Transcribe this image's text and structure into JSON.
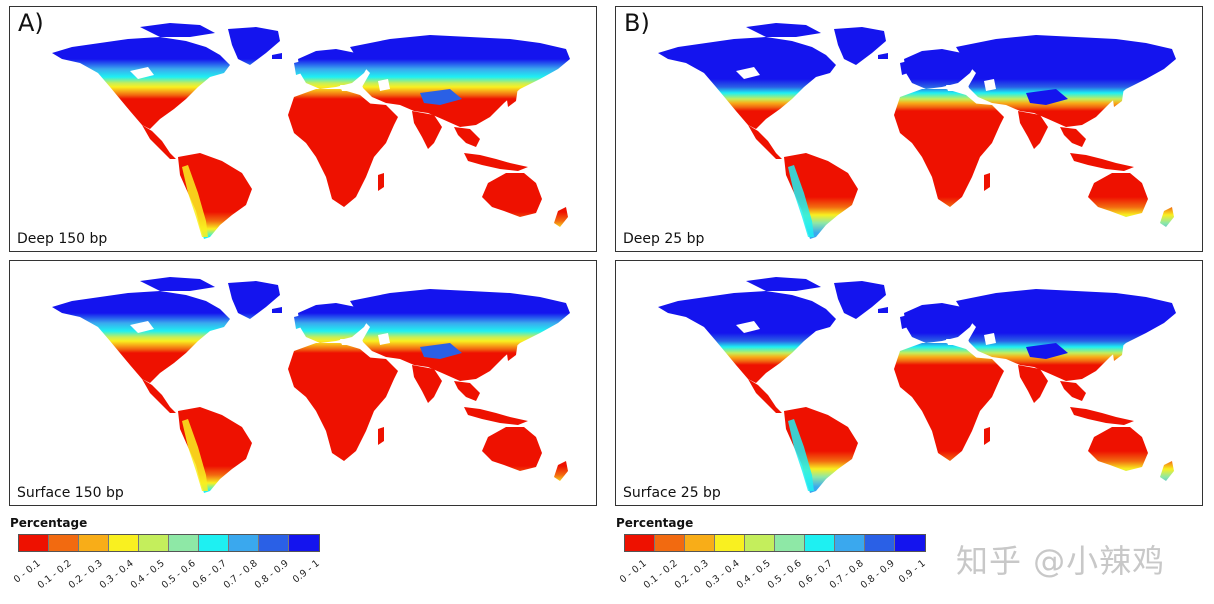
{
  "panels": [
    {
      "letter": "A)",
      "caption": "Deep 150 bp",
      "variant": "warm150"
    },
    {
      "letter": "B)",
      "caption": "Deep 25 bp",
      "variant": "cold25"
    },
    {
      "letter": "",
      "caption": "Surface 150 bp",
      "variant": "warm150"
    },
    {
      "letter": "",
      "caption": "Surface 25 bp",
      "variant": "cold25"
    }
  ],
  "legend_left": {
    "title": "Percentage",
    "classes": [
      "0 - 0.1",
      "0.1 - 0.2",
      "0.2 - 0.3",
      "0.3 - 0.4",
      "0.4 - 0.5",
      "0.5 - 0.6",
      "0.6 - 0.7",
      "0.7 - 0.8",
      "0.8 - 0.9",
      "0.9 - 1"
    ],
    "colors": [
      "#ee1100",
      "#f26a10",
      "#f8ad18",
      "#f9f020",
      "#c4ee5c",
      "#8ee8a6",
      "#1ef0f2",
      "#3aa8ee",
      "#2a60e6",
      "#1414ee"
    ]
  },
  "legend_right": {
    "title": "Percentage",
    "classes": [
      "0 - 0.1",
      "0.1 - 0.2",
      "0.2 - 0.3",
      "0.3 - 0.4",
      "0.4 - 0.5",
      "0.5 - 0.6",
      "0.6 - 0.7",
      "0.7 - 0.8",
      "0.8 - 0.9",
      "0.9 - 1"
    ],
    "colors": [
      "#ee1100",
      "#f26a10",
      "#f8ad18",
      "#f9f020",
      "#c4ee5c",
      "#8ee8a6",
      "#1ef0f2",
      "#3aa8ee",
      "#2a60e6",
      "#1414ee"
    ]
  },
  "watermark": "知乎 @小辣鸡"
}
